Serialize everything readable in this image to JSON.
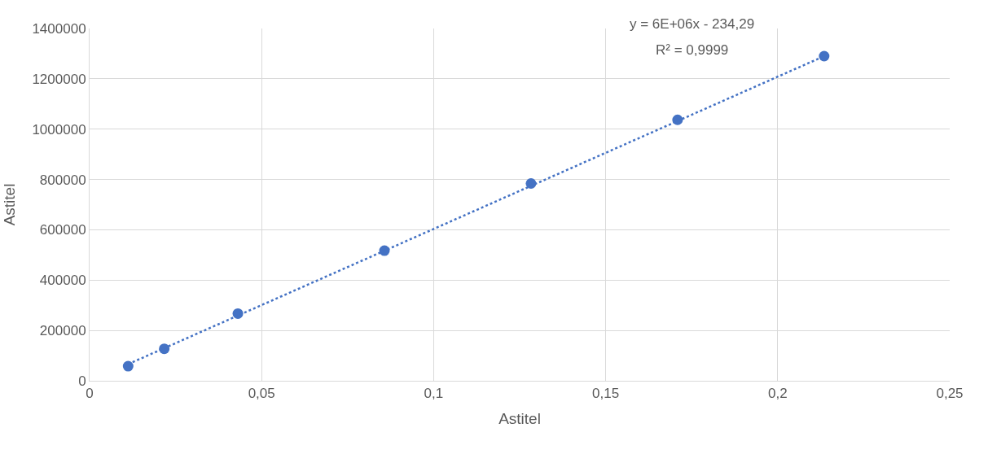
{
  "chart_data": {
    "type": "scatter",
    "xlabel": "Astitel",
    "ylabel": "Astitel",
    "x": [
      0.0112,
      0.0217,
      0.0431,
      0.0857,
      0.1283,
      0.1709,
      0.2135
    ],
    "series": [
      {
        "color": "#4472c4",
        "values": [
          58000,
          127000,
          267000,
          517000,
          784000,
          1037000,
          1290000
        ],
        "marker": "circle"
      },
      {
        "type": "line",
        "color": "#4472c4",
        "x": [
          0.0112,
          0.2135
        ],
        "values": [
          66000,
          1290000
        ],
        "line_style": "dotted",
        "marker": "none"
      }
    ],
    "annotations": [
      "y = 6E+06x - 234,29",
      "R² = 0,9999"
    ],
    "xlim": [
      0,
      0.25
    ],
    "xticks": [
      0,
      {
        "value": 0.05,
        "label": "0,05"
      },
      {
        "value": 0.1,
        "label": "0,1"
      },
      {
        "value": 0.15,
        "label": "0,15"
      },
      {
        "value": 0.2,
        "label": "0,2"
      },
      {
        "value": 0.25,
        "label": "0,25"
      }
    ],
    "ylim": [
      0,
      1400000
    ],
    "yticks": [
      0,
      200000,
      400000,
      600000,
      800000,
      1000000,
      1200000,
      1400000
    ],
    "grid": true,
    "legend": false
  }
}
